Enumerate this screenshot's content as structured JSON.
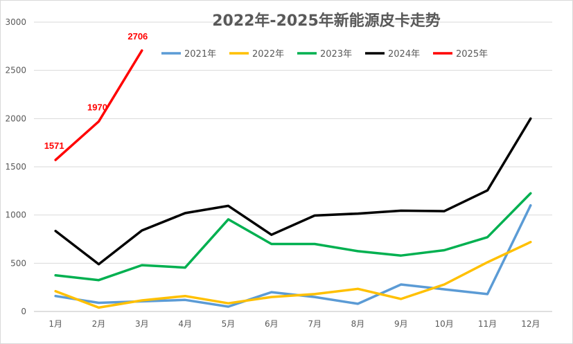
{
  "chart_data": {
    "type": "line",
    "title": "2022年-2025年新能源皮卡走势",
    "xlabel": "",
    "ylabel": "",
    "categories": [
      "1月",
      "2月",
      "3月",
      "4月",
      "5月",
      "6月",
      "7月",
      "8月",
      "9月",
      "10月",
      "11月",
      "12月"
    ],
    "ylim": [
      0,
      3000
    ],
    "yticks": [
      0,
      500,
      1000,
      1500,
      2000,
      2500,
      3000
    ],
    "grid": true,
    "legend": "top",
    "series": [
      {
        "name": "2021年",
        "color": "#5b9bd5",
        "values": [
          160,
          90,
          105,
          120,
          50,
          200,
          150,
          80,
          280,
          230,
          180,
          1100
        ]
      },
      {
        "name": "2022年",
        "color": "#ffc000",
        "values": [
          210,
          40,
          115,
          160,
          85,
          150,
          180,
          235,
          130,
          280,
          510,
          720
        ]
      },
      {
        "name": "2023年",
        "color": "#00b050",
        "values": [
          375,
          325,
          480,
          455,
          955,
          700,
          700,
          625,
          580,
          635,
          770,
          1225
        ]
      },
      {
        "name": "2024年",
        "color": "#000000",
        "values": [
          835,
          490,
          840,
          1020,
          1095,
          795,
          995,
          1015,
          1045,
          1040,
          1255,
          2000
        ]
      },
      {
        "name": "2025年",
        "color": "#ff0000",
        "values": [
          1571,
          1970,
          2706,
          null,
          null,
          null,
          null,
          null,
          null,
          null,
          null,
          null
        ]
      }
    ],
    "data_labels": {
      "series": "2025年",
      "color": "#ff0000",
      "labels": [
        "1571",
        "1970",
        "2706"
      ]
    }
  }
}
